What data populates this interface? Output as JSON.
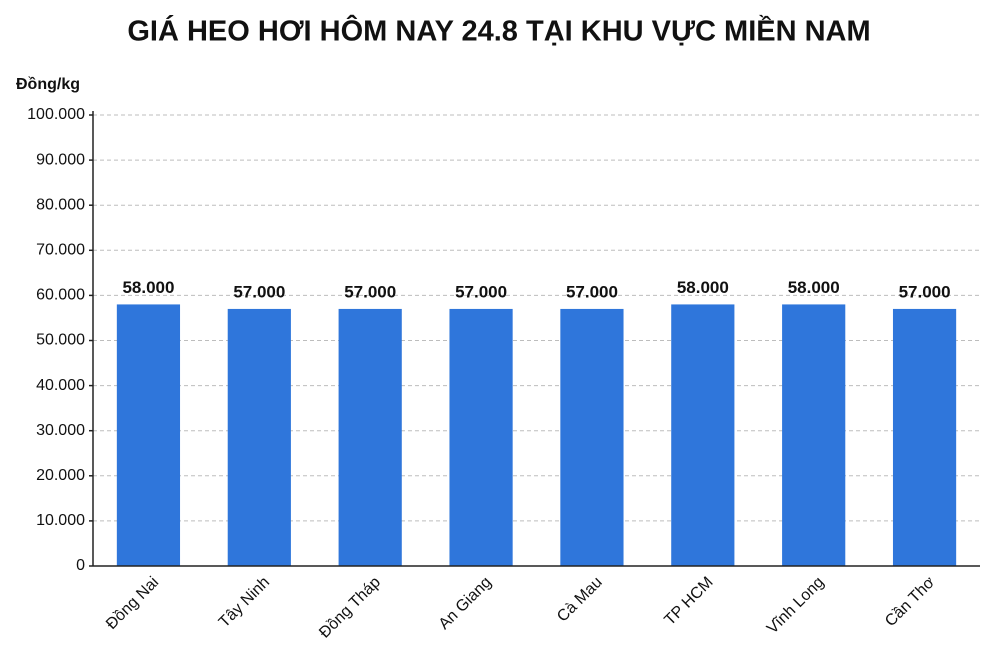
{
  "chart_data": {
    "type": "bar",
    "title": "GIÁ HEO HƠI HÔM NAY 24.8 TẠI KHU VỰC MIỀN NAM",
    "y_label": "Đồng/kg",
    "categories": [
      "Đồng Nai",
      "Tây Ninh",
      "Đồng Tháp",
      "An Giang",
      "Cà Mau",
      "TP HCM",
      "Vĩnh Long",
      "Cần Thơ"
    ],
    "values": [
      58000,
      57000,
      57000,
      57000,
      57000,
      58000,
      58000,
      57000
    ],
    "value_labels": [
      "58.000",
      "57.000",
      "57.000",
      "57.000",
      "57.000",
      "58.000",
      "58.000",
      "57.000"
    ],
    "color": "#2f76db",
    "ylim": [
      0,
      100000
    ],
    "yticks": [
      0,
      {
        "value": 10000,
        "label": "10.000"
      },
      {
        "value": 20000,
        "label": "20.000"
      },
      {
        "value": 30000,
        "label": "30.000"
      },
      {
        "value": 40000,
        "label": "40.000"
      },
      {
        "value": 50000,
        "label": "50.000"
      },
      {
        "value": 60000,
        "label": "60.000"
      },
      {
        "value": 70000,
        "label": "70.000"
      },
      {
        "value": 80000,
        "label": "80.000"
      },
      {
        "value": 90000,
        "label": "90.000"
      },
      {
        "value": 100000,
        "label": "100.000"
      }
    ],
    "grid": true
  }
}
